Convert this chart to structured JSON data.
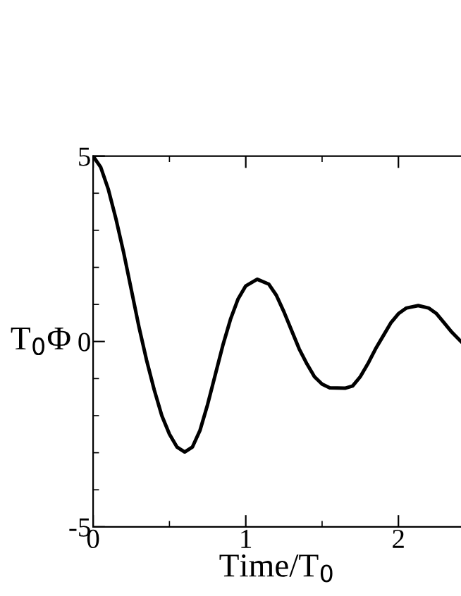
{
  "chart_data": {
    "type": "line",
    "xlabel": "Time/T$_{0}$",
    "ylabel": "T$_{0}$Φ",
    "x": [
      0,
      0.05,
      0.1,
      0.15,
      0.2,
      0.25,
      0.3,
      0.35,
      0.4,
      0.45,
      0.5,
      0.55,
      0.6,
      0.65,
      0.7,
      0.75,
      0.8,
      0.85,
      0.9,
      0.95,
      1.0,
      1.075,
      1.15,
      1.2,
      1.25,
      1.3,
      1.35,
      1.4,
      1.45,
      1.5,
      1.55,
      1.65,
      1.7,
      1.75,
      1.8,
      1.85,
      1.9,
      1.95,
      2.0,
      2.05,
      2.13,
      2.2,
      2.25,
      2.3,
      2.35,
      2.41
    ],
    "series": [
      {
        "color": "#000000",
        "values": [
          5,
          4.7,
          4.1,
          3.3,
          2.4,
          1.4,
          0.4,
          -0.5,
          -1.3,
          -2.0,
          -2.5,
          -2.85,
          -2.98,
          -2.85,
          -2.4,
          -1.7,
          -0.9,
          -0.1,
          0.6,
          1.15,
          1.5,
          1.68,
          1.55,
          1.25,
          0.8,
          0.3,
          -0.2,
          -0.6,
          -0.95,
          -1.15,
          -1.25,
          -1.26,
          -1.2,
          -0.95,
          -0.6,
          -0.2,
          0.15,
          0.5,
          0.75,
          0.9,
          0.97,
          0.9,
          0.75,
          0.5,
          0.25,
          0
        ]
      }
    ],
    "xlim": [
      0,
      2.41
    ],
    "ylim": [
      -5,
      5
    ],
    "xticks": [
      0,
      1,
      2
    ],
    "yticks": [
      -5,
      0,
      5
    ],
    "grid": false,
    "legend": false,
    "marker": "none",
    "line_style": "solid"
  }
}
